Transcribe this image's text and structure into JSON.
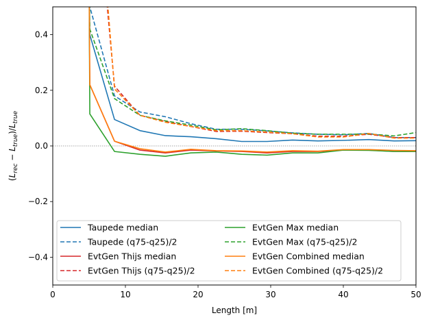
{
  "chart_data": {
    "type": "line",
    "title": "",
    "xlabel": "Length [m]",
    "ylabel": "(L_rec − L_true)/L_true",
    "ylabel_parts": {
      "open": "(",
      "L1": "L",
      "sub1": "rec",
      "minus": " − ",
      "L2": "L",
      "sub2": "true",
      "mid": ")/",
      "L3": "L",
      "sub3": "true"
    },
    "xlim": [
      0,
      50
    ],
    "ylim": [
      -0.5,
      0.5
    ],
    "xticks": [
      0,
      10,
      20,
      30,
      40,
      50
    ],
    "xtick_labels": [
      "0",
      "10",
      "20",
      "30",
      "40",
      "50"
    ],
    "yticks": [
      -0.4,
      -0.2,
      0.0,
      0.2,
      0.4
    ],
    "ytick_labels": [
      "−0.4",
      "−0.2",
      "0.0",
      "0.2",
      "0.4"
    ],
    "grid": false,
    "reference_line": {
      "y": 0.0,
      "style": "dotted",
      "color": "#888888"
    },
    "legend": {
      "placement": "lower-left",
      "columns": 2
    },
    "series": [
      {
        "name": "Taupede median",
        "color": "#1f77b4",
        "dash": "solid",
        "x": [
          5,
          5.1,
          8.5,
          12,
          15.5,
          19,
          22.5,
          26,
          29.5,
          33,
          36.5,
          40,
          43.5,
          47,
          50
        ],
        "y": [
          0.6,
          0.4,
          0.095,
          0.055,
          0.037,
          0.033,
          0.026,
          0.016,
          0.016,
          0.021,
          0.018,
          0.02,
          0.023,
          0.018,
          0.019
        ]
      },
      {
        "name": "Taupede (q75-q25)/2",
        "color": "#1f77b4",
        "dash": "dashed",
        "x": [
          5,
          5.1,
          8.5,
          12,
          15.5,
          19,
          22.5,
          26,
          29.5,
          33,
          36.5,
          40,
          43.5,
          47,
          50
        ],
        "y": [
          0.6,
          0.5,
          0.18,
          0.122,
          0.105,
          0.08,
          0.06,
          0.06,
          0.054,
          0.047,
          0.042,
          0.04,
          0.045,
          0.03,
          0.03
        ]
      },
      {
        "name": "EvtGen Thijs median",
        "color": "#d62728",
        "dash": "solid",
        "x": [
          5,
          5.1,
          8.5,
          12,
          15.5,
          19,
          22.5,
          26,
          29.5,
          33,
          36.5,
          40,
          43.5,
          47,
          50
        ],
        "y": [
          0.6,
          0.22,
          0.017,
          -0.015,
          -0.025,
          -0.015,
          -0.018,
          -0.02,
          -0.025,
          -0.02,
          -0.02,
          -0.015,
          -0.015,
          -0.02,
          -0.02
        ]
      },
      {
        "name": "EvtGen Thijs (q75-q25)/2",
        "color": "#d62728",
        "dash": "dashed",
        "x": [
          7,
          7.5,
          8.5,
          12,
          15.5,
          19,
          22.5,
          26,
          29.5,
          33,
          36.5,
          40,
          43.5,
          47,
          50
        ],
        "y": [
          0.6,
          0.5,
          0.215,
          0.11,
          0.088,
          0.07,
          0.052,
          0.053,
          0.048,
          0.044,
          0.035,
          0.035,
          0.042,
          0.03,
          0.03
        ]
      },
      {
        "name": "EvtGen Max median",
        "color": "#2ca02c",
        "dash": "solid",
        "x": [
          5,
          5.1,
          8.5,
          12,
          15.5,
          19,
          22.5,
          26,
          29.5,
          33,
          36.5,
          40,
          43.5,
          47,
          50
        ],
        "y": [
          0.6,
          0.115,
          -0.02,
          -0.03,
          -0.037,
          -0.025,
          -0.022,
          -0.03,
          -0.033,
          -0.025,
          -0.025,
          -0.015,
          -0.016,
          -0.02,
          -0.02
        ]
      },
      {
        "name": "EvtGen Max (q75-q25)/2",
        "color": "#2ca02c",
        "dash": "dashed",
        "x": [
          5,
          5.1,
          8.5,
          12,
          15.5,
          19,
          22.5,
          26,
          29.5,
          33,
          36.5,
          40,
          43.5,
          47,
          50
        ],
        "y": [
          0.6,
          0.42,
          0.17,
          0.11,
          0.09,
          0.075,
          0.058,
          0.062,
          0.055,
          0.046,
          0.042,
          0.042,
          0.043,
          0.036,
          0.048
        ]
      },
      {
        "name": "EvtGen Combined median",
        "color": "#ff7f0e",
        "dash": "solid",
        "x": [
          5,
          5.1,
          8.5,
          12,
          15.5,
          19,
          22.5,
          26,
          29.5,
          33,
          36.5,
          40,
          43.5,
          47,
          50
        ],
        "y": [
          0.6,
          0.22,
          0.017,
          -0.01,
          -0.022,
          -0.012,
          -0.017,
          -0.018,
          -0.022,
          -0.017,
          -0.019,
          -0.013,
          -0.013,
          -0.016,
          -0.017
        ]
      },
      {
        "name": "EvtGen Combined (q75-q25)/2",
        "color": "#ff7f0e",
        "dash": "dashed",
        "x": [
          7.2,
          7.6,
          8.5,
          12,
          15.5,
          19,
          22.5,
          26,
          29.5,
          33,
          36.5,
          40,
          43.5,
          47,
          50
        ],
        "y": [
          0.6,
          0.5,
          0.205,
          0.11,
          0.085,
          0.07,
          0.055,
          0.055,
          0.05,
          0.044,
          0.032,
          0.032,
          0.045,
          0.028,
          0.028
        ]
      }
    ]
  }
}
